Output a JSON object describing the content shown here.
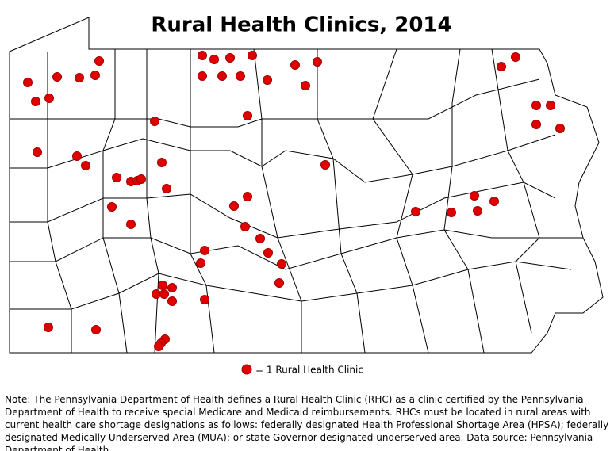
{
  "title": "Rural Health Clinics, 2014",
  "legend": {
    "label": "= 1 Rural Health Clinic"
  },
  "note": "Note: The Pennsylvania Department of Health defines a Rural Health Clinic (RHC) as a clinic certified by the Pennsylvania Department of Health to receive special Medicare and Medicaid reimbursements. RHCs must be located in rural areas with current health care shortage designations as follows: federally designated Health Professional Shortage Area (HPSA); federally designated Medically Underserved Area (MUA); or state Governor designated underserved area. Data source: Pennsylvania Department of Health."
}
